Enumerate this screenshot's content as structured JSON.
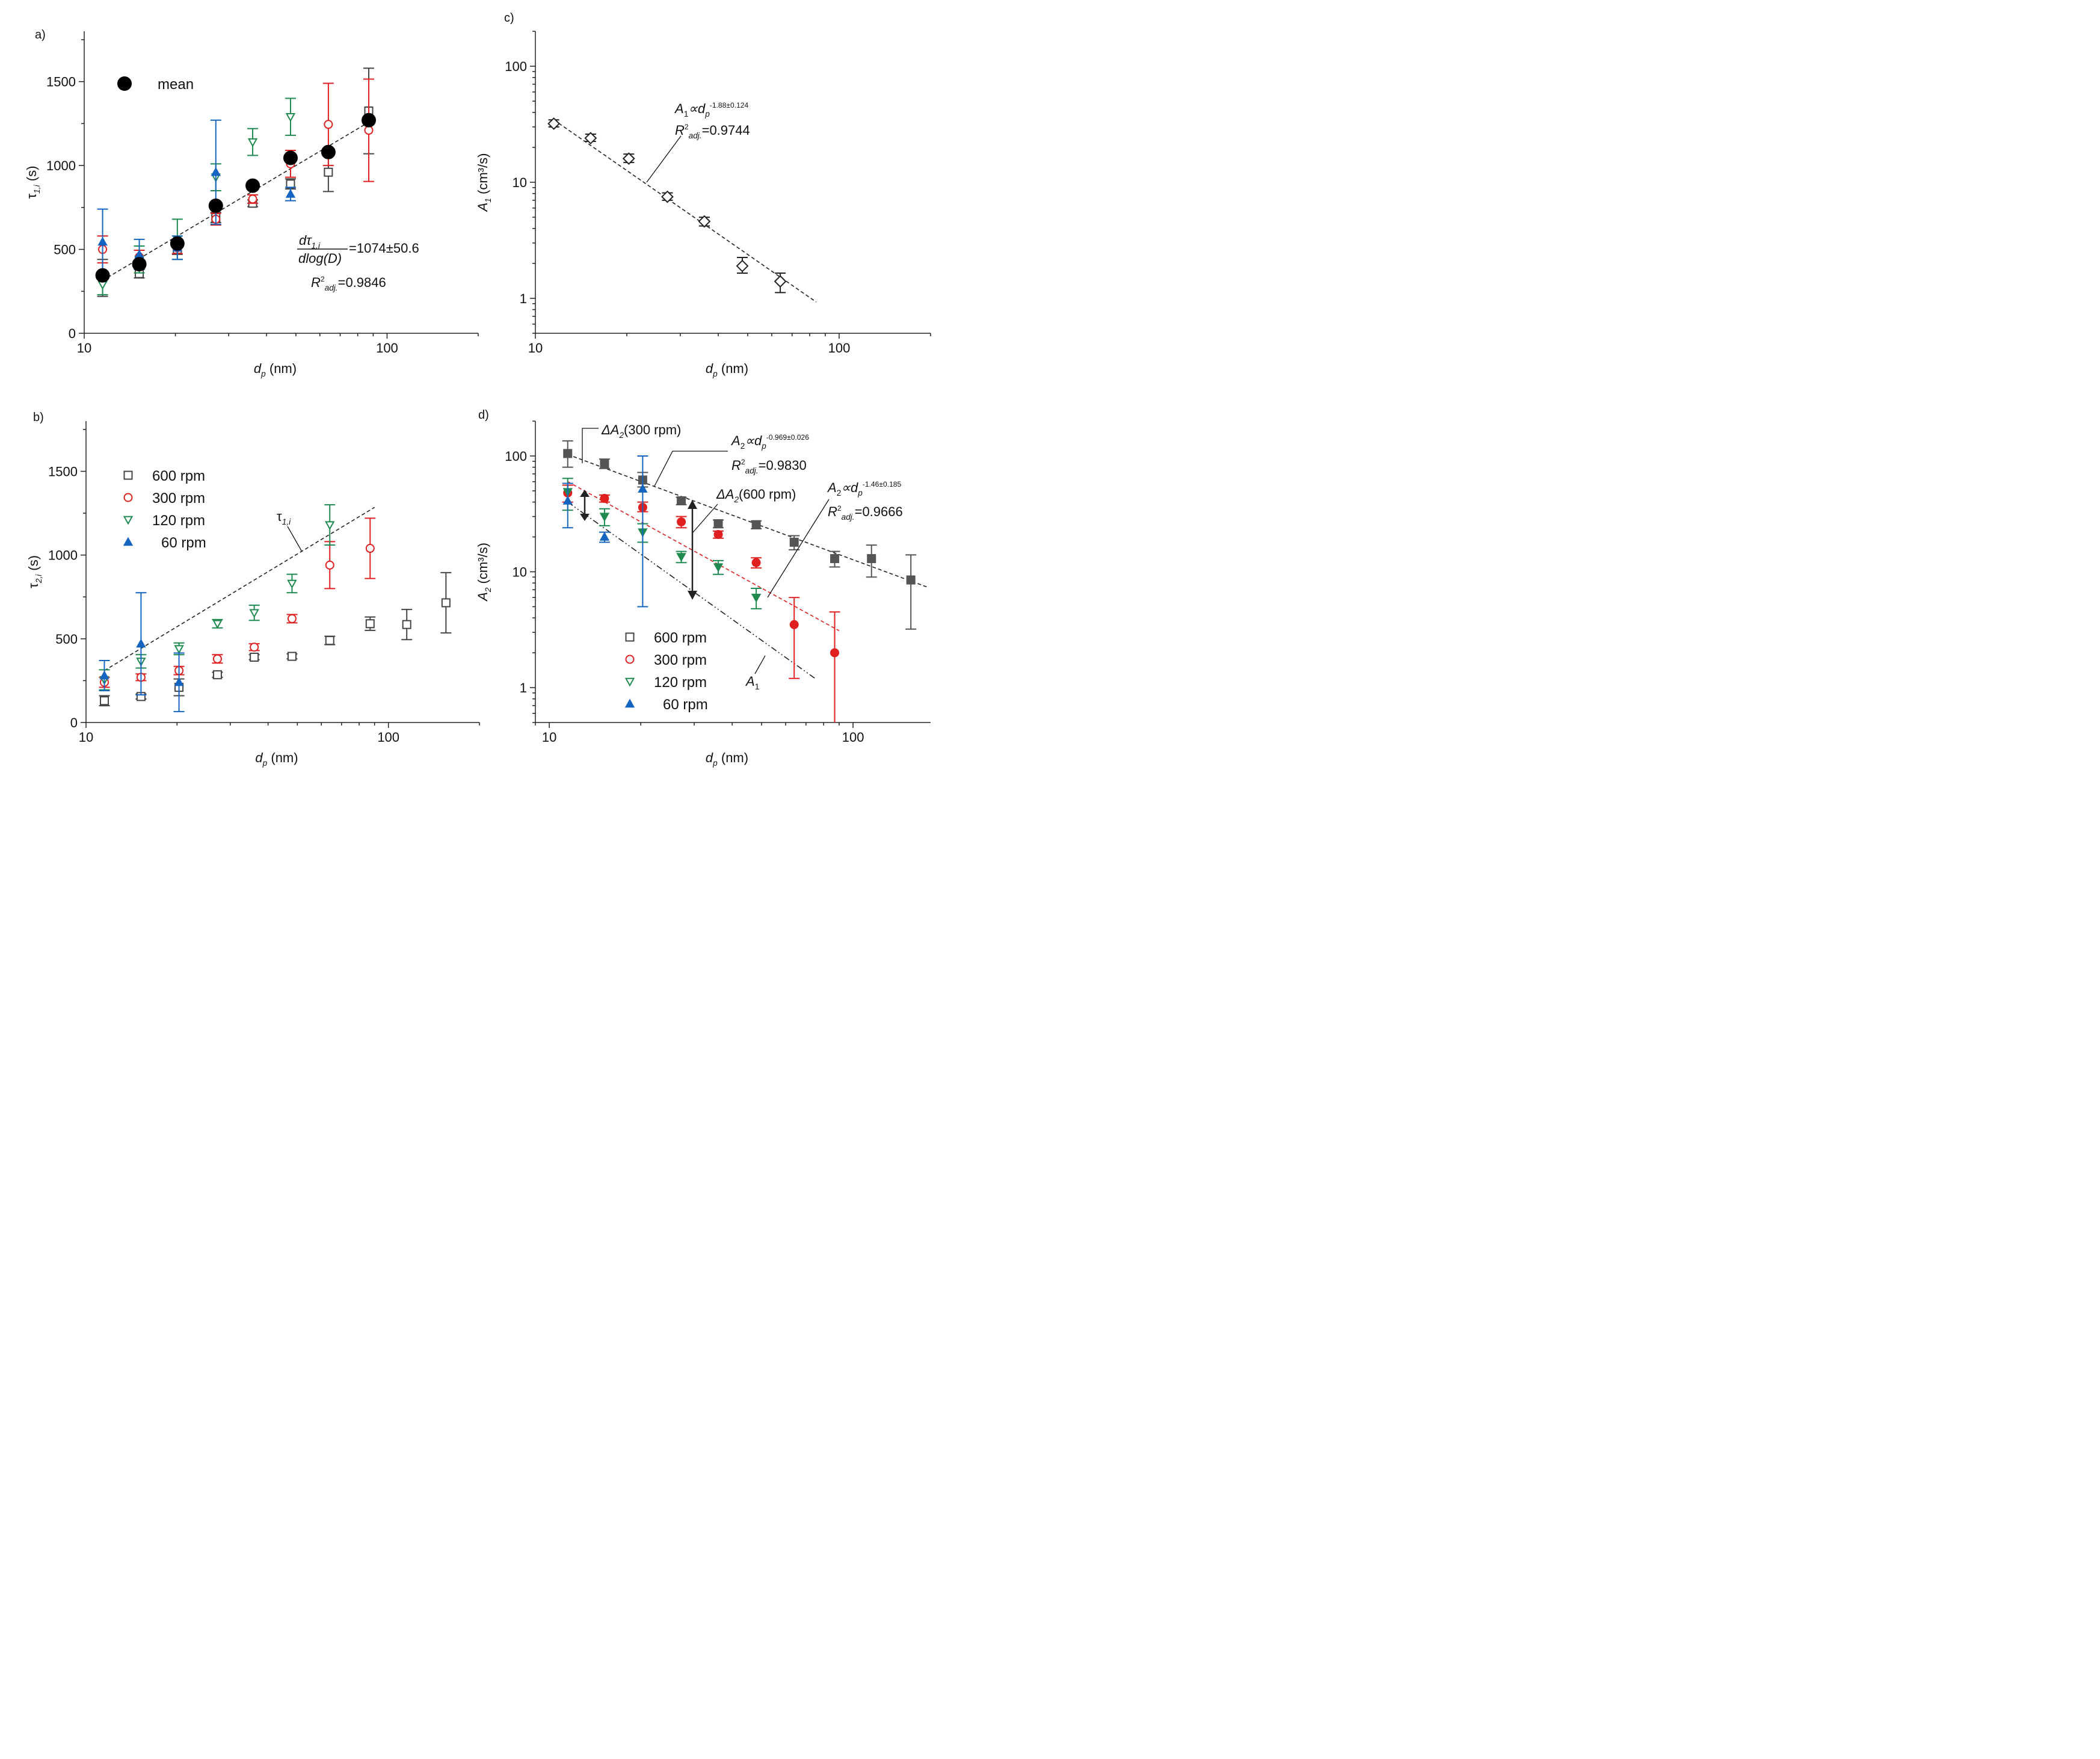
{
  "chart_data": [
    {
      "panel": "a)",
      "type": "scatter",
      "xscale": "log",
      "xlim": [
        10,
        200
      ],
      "ylim": [
        0,
        1800
      ],
      "xticks": [
        10,
        100
      ],
      "yticks": [
        0,
        500,
        1000,
        1500
      ],
      "xlabel_symbol": "d",
      "xlabel_sub": "p",
      "xlabel_unit": " (nm)",
      "ylabel_symbol": "τ",
      "ylabel_sub": "1,i",
      "ylabel_unit": " (s)",
      "legend": [
        {
          "label": "mean",
          "marker": "circle",
          "color": "#000000",
          "filled": true
        }
      ],
      "series": [
        {
          "name": "600 rpm",
          "marker": "square",
          "color": "#444444",
          "filled": false,
          "x": [
            11.5,
            15.2,
            20.3,
            27.2,
            36,
            48,
            64,
            87
          ],
          "y": [
            330,
            355,
            500,
            690,
            775,
            890,
            960,
            1325
          ],
          "err": [
            110,
            25,
            30,
            30,
            20,
            30,
            115,
            255
          ]
        },
        {
          "name": "300 rpm",
          "marker": "circle",
          "color": "#e02020",
          "filled": false,
          "x": [
            11.5,
            15.2,
            20.3,
            27.2,
            36,
            48,
            64,
            87
          ],
          "y": [
            500,
            455,
            510,
            680,
            800,
            1010,
            1245,
            1210
          ],
          "err": [
            80,
            40,
            35,
            35,
            25,
            80,
            245,
            305
          ]
        },
        {
          "name": "120 rpm",
          "marker": "tri-down",
          "color": "#1e8a4f",
          "filled": false,
          "x": [
            11.5,
            15.2,
            20.3,
            27.2,
            36,
            48
          ],
          "y": [
            290,
            440,
            560,
            930,
            1140,
            1290
          ],
          "err": [
            60,
            80,
            120,
            80,
            80,
            110
          ]
        },
        {
          "name": "60 rpm",
          "marker": "tri-up",
          "color": "#1565c0",
          "filled": true,
          "x": [
            11.5,
            15.2,
            20.3,
            27.2,
            48
          ],
          "y": [
            545,
            470,
            510,
            960,
            830
          ],
          "err": [
            195,
            90,
            70,
            310,
            40
          ]
        },
        {
          "name": "mean",
          "marker": "circle",
          "color": "#000000",
          "filled": true,
          "x": [
            11.5,
            15.2,
            20.3,
            27.2,
            36,
            48,
            64,
            87
          ],
          "y": [
            345,
            412,
            535,
            760,
            880,
            1045,
            1080,
            1270
          ]
        }
      ],
      "fit": {
        "x": [
          11.5,
          87
        ],
        "y": [
          315,
          1258
        ]
      },
      "annotations": {
        "slope_num_symbol": "dτ",
        "slope_num_sub": "1,i",
        "slope_den": "dlog(D)",
        "slope_value": "=1074±50.6",
        "r2_symbol": "R",
        "r2_sup": "2",
        "r2_sub": "adj.",
        "r2_value": "=0.9846"
      }
    },
    {
      "panel": "b)",
      "type": "scatter",
      "xscale": "log",
      "xlim": [
        10,
        200
      ],
      "ylim": [
        0,
        1800
      ],
      "xticks": [
        10,
        100
      ],
      "yticks": [
        0,
        500,
        1000,
        1500
      ],
      "xlabel_symbol": "d",
      "xlabel_sub": "p",
      "xlabel_unit": " (nm)",
      "ylabel_symbol": "τ",
      "ylabel_sub": "2,i",
      "ylabel_unit": " (s)",
      "legend": [
        {
          "label": "600 rpm",
          "marker": "square",
          "color": "#444444",
          "filled": false
        },
        {
          "label": "300 rpm",
          "marker": "circle",
          "color": "#e02020",
          "filled": false
        },
        {
          "label": "120 rpm",
          "marker": "tri-down",
          "color": "#1e8a4f",
          "filled": false
        },
        {
          "label": "60 rpm",
          "marker": "tri-up",
          "color": "#1565c0",
          "filled": true
        }
      ],
      "series": [
        {
          "name": "600 rpm",
          "marker": "square",
          "color": "#444444",
          "filled": false,
          "x": [
            11.5,
            15.2,
            20.3,
            27.2,
            36,
            48,
            64,
            87,
            115,
            155
          ],
          "y": [
            130,
            155,
            210,
            285,
            390,
            395,
            490,
            590,
            585,
            715
          ],
          "err": [
            30,
            15,
            50,
            15,
            15,
            15,
            25,
            40,
            90,
            180
          ]
        },
        {
          "name": "300 rpm",
          "marker": "circle",
          "color": "#e02020",
          "filled": false,
          "x": [
            11.5,
            15.2,
            20.3,
            27.2,
            36,
            48,
            64,
            87
          ],
          "y": [
            240,
            270,
            310,
            380,
            450,
            620,
            940,
            1040
          ],
          "err": [
            30,
            20,
            25,
            25,
            20,
            25,
            140,
            180
          ]
        },
        {
          "name": "120 rpm",
          "marker": "tri-down",
          "color": "#1e8a4f",
          "filled": false,
          "x": [
            11.5,
            15.2,
            20.3,
            27.2,
            36,
            48,
            64
          ],
          "y": [
            255,
            365,
            440,
            590,
            655,
            830,
            1180
          ],
          "err": [
            60,
            40,
            35,
            25,
            45,
            55,
            120
          ]
        },
        {
          "name": "60 rpm",
          "marker": "tri-up",
          "color": "#1565c0",
          "filled": true,
          "x": [
            11.5,
            15.2,
            20.3
          ],
          "y": [
            280,
            470,
            240
          ],
          "err": [
            90,
            305,
            175
          ]
        }
      ],
      "fit": {
        "x": [
          11.5,
          90
        ],
        "y": [
          310,
          1285
        ]
      },
      "annotations": {
        "tau_symbol": "τ",
        "tau_sub": "1,i"
      }
    },
    {
      "panel": "c)",
      "type": "scatter",
      "xscale": "log",
      "yscale": "log",
      "xlim": [
        10,
        200
      ],
      "ylim": [
        0.5,
        200
      ],
      "xticks": [
        10,
        100
      ],
      "yticks": [
        1,
        10,
        100
      ],
      "xlabel_symbol": "d",
      "xlabel_sub": "p",
      "xlabel_unit": " (nm)",
      "ylabel_symbol": "A",
      "ylabel_sub": "1",
      "ylabel_unit": " (cm³/s)",
      "series": [
        {
          "name": "A1",
          "marker": "diamond",
          "color": "#222222",
          "filled": false,
          "x": [
            11.5,
            15.2,
            20.3,
            27.2,
            36,
            48,
            64
          ],
          "y": [
            32,
            24,
            16,
            7.5,
            4.6,
            1.9,
            1.4
          ],
          "err_lo": [
            2,
            1.5,
            1.2,
            0.5,
            0.4,
            0.25,
            0.28
          ],
          "err_hi": [
            2.5,
            2,
            1.5,
            0.6,
            0.4,
            0.35,
            0.25
          ]
        }
      ],
      "fit": {
        "x": [
          11.5,
          84
        ],
        "y": [
          34.5,
          0.93
        ]
      },
      "annotations": {
        "eq_lhs": "A",
        "eq_lhs_sub": "1",
        "eq_rel": "∝d",
        "eq_sub": "p",
        "eq_exp": "-1.88±0.124",
        "r2_symbol": "R",
        "r2_sup": "2",
        "r2_sub": "adj.",
        "r2_value": "=0.9744"
      }
    },
    {
      "panel": "d)",
      "type": "scatter",
      "xscale": "log",
      "yscale": "log",
      "xlim": [
        9,
        180
      ],
      "ylim": [
        0.5,
        200
      ],
      "xticks": [
        10,
        100
      ],
      "yticks": [
        1,
        10,
        100
      ],
      "xlabel_symbol": "d",
      "xlabel_sub": "p",
      "xlabel_unit": " (nm)",
      "ylabel_symbol": "A",
      "ylabel_sub": "2",
      "ylabel_unit": " (cm³/s)",
      "legend": [
        {
          "label": "600 rpm",
          "marker": "square",
          "color": "#444444",
          "filled": false
        },
        {
          "label": "300 rpm",
          "marker": "circle",
          "color": "#e02020",
          "filled": false
        },
        {
          "label": "120 rpm",
          "marker": "tri-down",
          "color": "#1e8a4f",
          "filled": false
        },
        {
          "label": "60 rpm",
          "marker": "tri-up",
          "color": "#1565c0",
          "filled": true
        }
      ],
      "series": [
        {
          "name": "600 rpm",
          "marker": "square",
          "color": "#555555",
          "filled": true,
          "x": [
            11.5,
            15.2,
            20.3,
            27.2,
            36,
            48,
            64,
            87,
            115,
            155
          ],
          "y": [
            105,
            86,
            62,
            41,
            26,
            25.5,
            18,
            13,
            13,
            8.5
          ],
          "err_lo": [
            25,
            8,
            8,
            3,
            2,
            2,
            2.5,
            2,
            4,
            5.3
          ],
          "err_hi": [
            30,
            8,
            10,
            3,
            2,
            2,
            2.5,
            2,
            4,
            5.5
          ]
        },
        {
          "name": "300 rpm",
          "marker": "circle",
          "color": "#e02020",
          "filled": true,
          "x": [
            11.5,
            15.2,
            20.3,
            27.2,
            36,
            48,
            64,
            87
          ],
          "y": [
            48,
            43,
            36,
            27,
            21,
            12,
            3.5,
            2
          ],
          "err_lo": [
            8,
            3,
            3,
            3,
            1.5,
            1.2,
            2.3,
            1.5
          ],
          "err_hi": [
            8,
            3,
            4,
            3,
            1.5,
            1.2,
            2.5,
            2.5
          ]
        },
        {
          "name": "120 rpm",
          "marker": "tri-down",
          "color": "#1e8a4f",
          "filled": true,
          "x": [
            11.5,
            15.2,
            20.3,
            27.2,
            36,
            48
          ],
          "y": [
            49,
            30,
            22,
            13.5,
            11,
            6
          ],
          "err_lo": [
            15,
            5,
            4,
            1.5,
            1.5,
            1.2
          ],
          "err_hi": [
            15,
            5,
            4,
            1.5,
            1.5,
            1.2
          ]
        },
        {
          "name": "60 rpm",
          "marker": "tri-up",
          "color": "#1565c0",
          "filled": true,
          "x": [
            11.5,
            15.2,
            20.3
          ],
          "y": [
            41,
            20,
            52
          ],
          "err_lo": [
            17,
            2,
            47
          ],
          "err_hi": [
            17,
            2,
            48
          ]
        }
      ],
      "fits": [
        {
          "name": "600 rpm fit",
          "x": [
            11.5,
            175
          ],
          "y": [
            103,
            7.4
          ],
          "color": "#222222",
          "dash": "dashed"
        },
        {
          "name": "300 rpm fit",
          "x": [
            11.5,
            90
          ],
          "y": [
            60,
            3.1
          ],
          "color": "#e02020",
          "dash": "dashed"
        },
        {
          "name": "A1",
          "x": [
            11.5,
            75
          ],
          "y": [
            40,
            1.2
          ],
          "color": "#222222",
          "dash": "dashdotdot"
        }
      ],
      "annotations": {
        "delta300_symbol": "ΔA",
        "delta300_sub": "2",
        "delta300_text": "(300 rpm)",
        "delta600_symbol": "ΔA",
        "delta600_sub": "2",
        "delta600_text": "(600 rpm)",
        "eq1_lhs": "A",
        "eq1_lhs_sub": "2",
        "eq1_rel": "∝d",
        "eq1_sub": "p",
        "eq1_exp": "-0.969±0.026",
        "r2a_symbol": "R",
        "r2a_sup": "2",
        "r2a_sub": "adj.",
        "r2a_value": "=0.9830",
        "eq2_lhs": "A",
        "eq2_lhs_sub": "2",
        "eq2_rel": "∝d",
        "eq2_sub": "p",
        "eq2_exp": "-1.46±0.185",
        "r2b_symbol": "R",
        "r2b_sup": "2",
        "r2b_sub": "adj.",
        "r2b_value": "=0.9666",
        "a1_symbol": "A",
        "a1_sub": "1"
      }
    }
  ]
}
